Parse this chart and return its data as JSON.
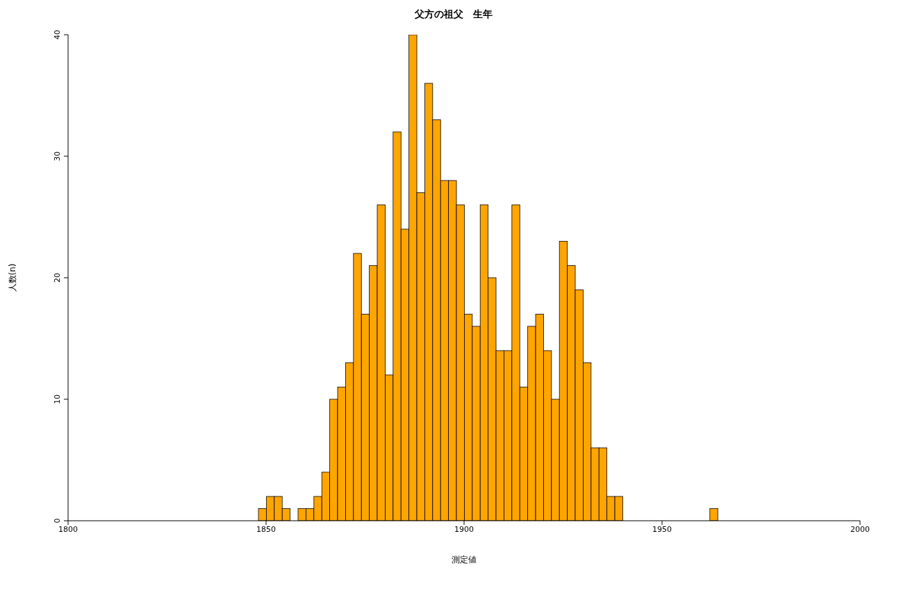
{
  "chart_data": {
    "type": "histogram",
    "title": "父方の祖父　生年",
    "xlabel": "測定値",
    "ylabel": "人数(n)",
    "bins": [
      1848,
      1850,
      1852,
      1854,
      1856,
      1858,
      1860,
      1862,
      1864,
      1866,
      1868,
      1870,
      1872,
      1874,
      1876,
      1878,
      1880,
      1882,
      1884,
      1886,
      1888,
      1890,
      1892,
      1894,
      1896,
      1898,
      1900,
      1902,
      1904,
      1906,
      1908,
      1910,
      1912,
      1914,
      1916,
      1918,
      1920,
      1922,
      1924,
      1926,
      1928,
      1930,
      1932,
      1934,
      1936,
      1938,
      1940,
      1942,
      1944,
      1946,
      1948,
      1950,
      1952,
      1954,
      1956,
      1958,
      1960,
      1962,
      1964
    ],
    "values": [
      1,
      2,
      2,
      1,
      0,
      1,
      1,
      2,
      4,
      10,
      11,
      13,
      22,
      17,
      21,
      26,
      12,
      32,
      24,
      40,
      27,
      36,
      33,
      28,
      28,
      26,
      17,
      16,
      26,
      20,
      14,
      14,
      26,
      11,
      16,
      17,
      14,
      10,
      23,
      21,
      19,
      13,
      6,
      6,
      2,
      2,
      0,
      0,
      0,
      0,
      0,
      0,
      0,
      0,
      0,
      0,
      0,
      1
    ],
    "color": "#ffa500",
    "xlim": [
      1800,
      2000
    ],
    "xticks": [
      1800,
      1850,
      1900,
      1950,
      2000
    ],
    "ylim": [
      0,
      40
    ],
    "yticks": [
      0,
      10,
      20,
      30,
      40
    ],
    "grid": false
  }
}
